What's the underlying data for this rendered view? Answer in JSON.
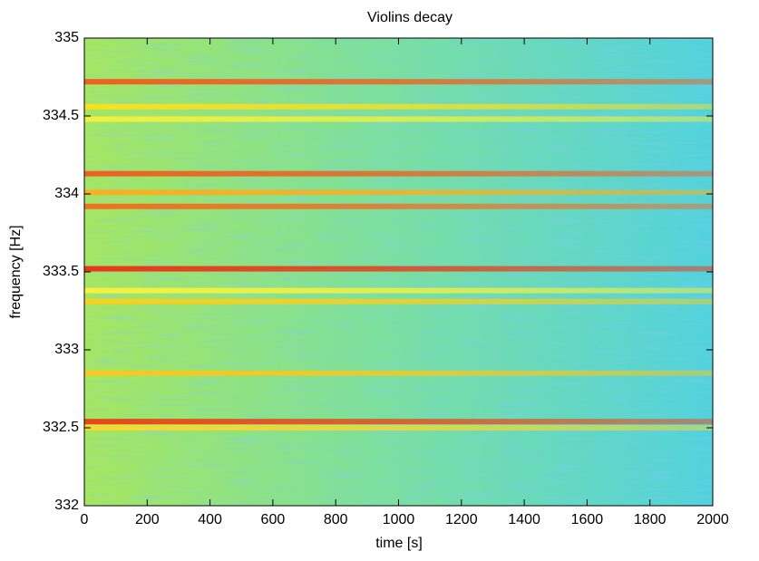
{
  "chart_data": {
    "type": "spectrogram",
    "title": "Violins decay",
    "x_label": "time [s]",
    "y_label": "frequency [Hz]",
    "xlim": [
      0,
      2000
    ],
    "xticks": [
      0,
      200,
      400,
      600,
      800,
      1000,
      1200,
      1400,
      1600,
      1800,
      2000
    ],
    "ylim": [
      332,
      335
    ],
    "yticks": [
      332,
      332.5,
      333,
      333.5,
      334,
      334.5,
      335
    ],
    "lines": [
      {
        "frequency": 334.72,
        "color": "#f06020"
      },
      {
        "frequency": 334.56,
        "color": "#f8e020"
      },
      {
        "frequency": 334.48,
        "color": "#f0f040"
      },
      {
        "frequency": 334.13,
        "color": "#f06020"
      },
      {
        "frequency": 334.01,
        "color": "#f8b020"
      },
      {
        "frequency": 333.92,
        "color": "#f07020"
      },
      {
        "frequency": 333.52,
        "color": "#e83818"
      },
      {
        "frequency": 333.38,
        "color": "#f8f040"
      },
      {
        "frequency": 333.31,
        "color": "#f8d020"
      },
      {
        "frequency": 332.85,
        "color": "#f8c820"
      },
      {
        "frequency": 332.54,
        "color": "#e84818"
      },
      {
        "frequency": 332.5,
        "color": "#f8d830"
      }
    ]
  }
}
